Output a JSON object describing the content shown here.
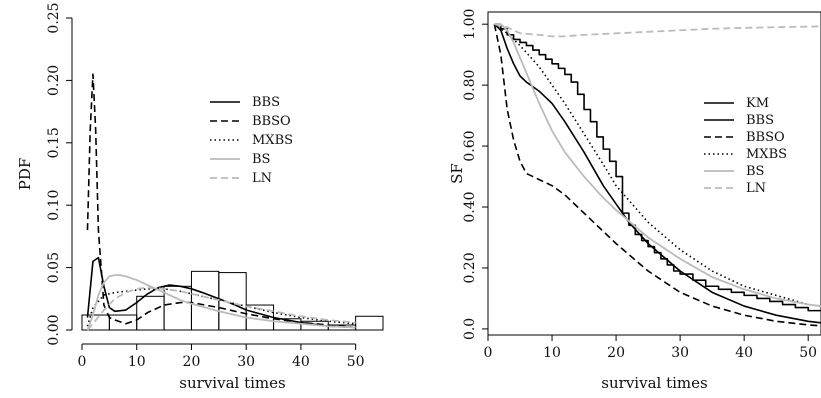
{
  "chart_data": [
    {
      "type": "line",
      "panel": "left",
      "xlabel": "survival times",
      "ylabel": "PDF",
      "xlim": [
        0,
        55
      ],
      "ylim": [
        0,
        0.25
      ],
      "xticks": [
        0,
        10,
        20,
        30,
        40,
        50
      ],
      "yticks": [
        0.0,
        0.05,
        0.1,
        0.15,
        0.2,
        0.25
      ],
      "ytick_labels": [
        "0.00",
        "0.05",
        "0.10",
        "0.15",
        "0.20",
        "0.25"
      ],
      "legend_position": "top-right",
      "histogram": {
        "bins": [
          [
            0,
            5
          ],
          [
            5,
            10
          ],
          [
            10,
            15
          ],
          [
            15,
            20
          ],
          [
            20,
            25
          ],
          [
            25,
            30
          ],
          [
            30,
            35
          ],
          [
            35,
            40
          ],
          [
            40,
            45
          ],
          [
            45,
            50
          ],
          [
            50,
            55
          ]
        ],
        "heights": [
          0.012,
          0.012,
          0.027,
          0.035,
          0.047,
          0.046,
          0.02,
          0.009,
          0.007,
          0.004,
          0.011
        ]
      },
      "series": [
        {
          "name": "BBS",
          "style": "solid",
          "color": "#000000",
          "x": [
            1,
            2,
            3,
            4,
            5,
            6,
            8,
            10,
            12,
            14,
            16,
            18,
            20,
            22,
            25,
            28,
            30,
            35,
            40,
            45,
            50
          ],
          "y": [
            0.01,
            0.055,
            0.058,
            0.035,
            0.018,
            0.015,
            0.016,
            0.022,
            0.029,
            0.034,
            0.036,
            0.035,
            0.033,
            0.03,
            0.025,
            0.02,
            0.016,
            0.01,
            0.006,
            0.003,
            0.002
          ]
        },
        {
          "name": "BBSO",
          "style": "dashed",
          "color": "#000000",
          "x": [
            1,
            1.5,
            2,
            2.5,
            3,
            4,
            5,
            6,
            8,
            10,
            12,
            15,
            18,
            20,
            25,
            30,
            35,
            40,
            45,
            50
          ],
          "y": [
            0.08,
            0.16,
            0.205,
            0.16,
            0.08,
            0.02,
            0.01,
            0.008,
            0.005,
            0.008,
            0.014,
            0.02,
            0.022,
            0.022,
            0.018,
            0.013,
            0.009,
            0.006,
            0.004,
            0.002
          ]
        },
        {
          "name": "MXBS",
          "style": "dotted",
          "color": "#000000",
          "x": [
            1,
            2,
            4,
            6,
            8,
            10,
            12,
            15,
            18,
            20,
            25,
            30,
            35,
            40,
            45,
            50
          ],
          "y": [
            0.003,
            0.018,
            0.028,
            0.03,
            0.031,
            0.032,
            0.033,
            0.033,
            0.031,
            0.029,
            0.024,
            0.019,
            0.014,
            0.01,
            0.007,
            0.005
          ]
        },
        {
          "name": "BS",
          "style": "solid",
          "color": "#bbbbbb",
          "x": [
            1,
            2,
            3,
            4,
            5,
            6,
            7,
            8,
            10,
            12,
            15,
            18,
            20,
            25,
            30,
            35,
            40,
            45,
            50
          ],
          "y": [
            0.0,
            0.012,
            0.028,
            0.038,
            0.043,
            0.044,
            0.044,
            0.043,
            0.04,
            0.036,
            0.03,
            0.024,
            0.021,
            0.015,
            0.01,
            0.007,
            0.005,
            0.003,
            0.002
          ]
        },
        {
          "name": "LN",
          "style": "dashed",
          "color": "#bbbbbb",
          "x": [
            1,
            2,
            4,
            6,
            8,
            10,
            12,
            15,
            18,
            20,
            25,
            30,
            35,
            40,
            45,
            50
          ],
          "y": [
            0.0,
            0.005,
            0.016,
            0.025,
            0.03,
            0.033,
            0.034,
            0.033,
            0.031,
            0.029,
            0.024,
            0.019,
            0.015,
            0.011,
            0.008,
            0.006
          ]
        }
      ]
    },
    {
      "type": "line",
      "panel": "right",
      "xlabel": "survival times",
      "ylabel": "SF",
      "xlim": [
        0,
        52
      ],
      "ylim": [
        -0.02,
        1.04
      ],
      "xticks": [
        0,
        10,
        20,
        30,
        40,
        50
      ],
      "xtick_labels": [
        "0",
        "10",
        "20",
        "30",
        "40",
        "50"
      ],
      "yticks": [
        0.0,
        0.2,
        0.4,
        0.6,
        0.8,
        1.0
      ],
      "ytick_labels": [
        "0.0",
        "0.20",
        "0.40",
        "0.60",
        "0.80",
        "1.00"
      ],
      "legend_position": "right",
      "series": [
        {
          "name": "KM",
          "style": "step",
          "color": "#000000",
          "x": [
            1,
            2,
            3,
            4,
            5,
            6,
            7,
            8,
            9,
            10,
            11,
            12,
            13,
            14,
            15,
            16,
            17,
            18,
            19,
            20,
            21,
            22,
            23,
            24,
            25,
            26,
            27,
            28,
            29,
            30,
            32,
            34,
            36,
            38,
            40,
            42,
            44,
            46,
            48,
            50,
            52
          ],
          "y": [
            1.0,
            0.985,
            0.965,
            0.95,
            0.94,
            0.93,
            0.915,
            0.9,
            0.885,
            0.87,
            0.855,
            0.835,
            0.81,
            0.77,
            0.72,
            0.68,
            0.63,
            0.59,
            0.55,
            0.5,
            0.38,
            0.34,
            0.31,
            0.29,
            0.27,
            0.25,
            0.23,
            0.21,
            0.19,
            0.18,
            0.16,
            0.14,
            0.13,
            0.12,
            0.11,
            0.1,
            0.09,
            0.08,
            0.07,
            0.06,
            0.06
          ]
        },
        {
          "name": "BBS",
          "style": "solid",
          "color": "#000000",
          "x": [
            1,
            2,
            3,
            4,
            5,
            6,
            8,
            10,
            12,
            15,
            18,
            20,
            22,
            25,
            30,
            35,
            40,
            45,
            50,
            52
          ],
          "y": [
            1.0,
            0.98,
            0.92,
            0.87,
            0.83,
            0.81,
            0.78,
            0.74,
            0.68,
            0.58,
            0.47,
            0.41,
            0.35,
            0.28,
            0.19,
            0.12,
            0.075,
            0.045,
            0.025,
            0.02
          ]
        },
        {
          "name": "BBSO",
          "style": "dashed",
          "color": "#000000",
          "x": [
            1,
            2,
            3,
            4,
            5,
            6,
            8,
            10,
            12,
            15,
            18,
            20,
            25,
            30,
            35,
            40,
            45,
            50,
            52
          ],
          "y": [
            1.0,
            0.9,
            0.72,
            0.62,
            0.55,
            0.51,
            0.49,
            0.47,
            0.44,
            0.38,
            0.32,
            0.28,
            0.19,
            0.12,
            0.075,
            0.045,
            0.025,
            0.013,
            0.01
          ]
        },
        {
          "name": "MXBS",
          "style": "dotted",
          "color": "#000000",
          "x": [
            1,
            3,
            5,
            8,
            10,
            12,
            15,
            18,
            20,
            25,
            30,
            35,
            40,
            45,
            50,
            52
          ],
          "y": [
            1.0,
            0.97,
            0.93,
            0.86,
            0.8,
            0.74,
            0.64,
            0.54,
            0.47,
            0.35,
            0.26,
            0.19,
            0.14,
            0.11,
            0.08,
            0.075
          ]
        },
        {
          "name": "BS",
          "style": "solid",
          "color": "#bbbbbb",
          "x": [
            1,
            2,
            3,
            4,
            5,
            6,
            8,
            10,
            12,
            15,
            18,
            20,
            25,
            30,
            35,
            40,
            45,
            50,
            52
          ],
          "y": [
            1.0,
            1.0,
            0.98,
            0.94,
            0.89,
            0.84,
            0.74,
            0.65,
            0.58,
            0.5,
            0.43,
            0.39,
            0.3,
            0.23,
            0.17,
            0.13,
            0.1,
            0.08,
            0.075
          ]
        },
        {
          "name": "LN",
          "style": "dashed",
          "color": "#bbbbbb",
          "x": [
            1,
            3,
            5,
            8,
            10,
            12,
            15,
            20,
            25,
            30,
            35,
            40,
            45,
            50,
            52
          ],
          "y": [
            1.0,
            0.99,
            0.97,
            0.965,
            0.96,
            0.96,
            0.965,
            0.97,
            0.975,
            0.98,
            0.985,
            0.988,
            0.99,
            0.992,
            0.993
          ]
        }
      ]
    }
  ]
}
